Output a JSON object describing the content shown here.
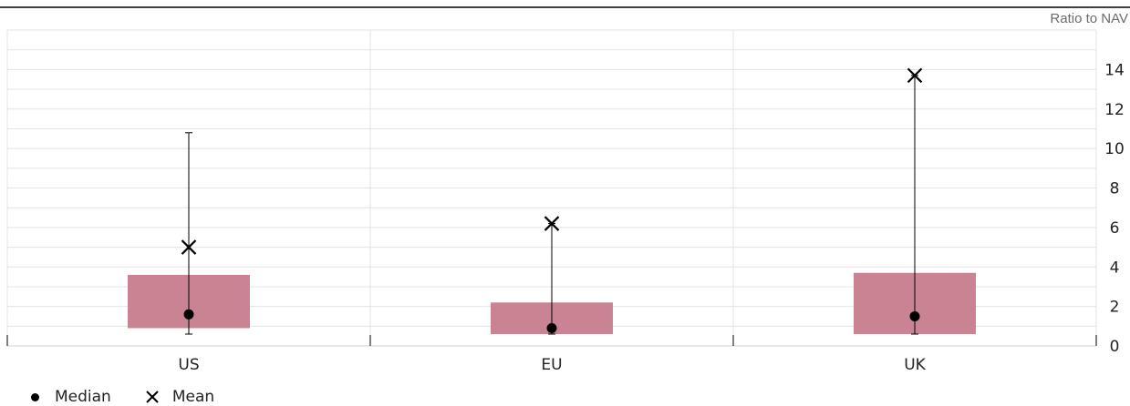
{
  "chart_data": {
    "type": "box",
    "unit_label": "Ratio to NAV",
    "categories": [
      "US",
      "EU",
      "UK"
    ],
    "boxes": [
      {
        "category": "US",
        "whisker_low": 0.6,
        "q1": 0.9,
        "median": 1.6,
        "q3": 3.6,
        "whisker_high": 10.8,
        "mean": 5.0
      },
      {
        "category": "EU",
        "whisker_low": 0.6,
        "q1": 0.6,
        "median": 0.9,
        "q3": 2.2,
        "whisker_high": 6.2,
        "mean": 6.2
      },
      {
        "category": "UK",
        "whisker_low": 0.6,
        "q1": 0.6,
        "median": 1.5,
        "q3": 3.7,
        "whisker_high": 13.7,
        "mean": 13.7
      }
    ],
    "y_ticks": [
      0,
      2,
      4,
      6,
      8,
      10,
      12,
      14
    ],
    "ylim": [
      0,
      16
    ],
    "y_axis_position": "right",
    "grid": true,
    "box_color": "#c98393",
    "legend_position": "bottom-left",
    "legend": [
      {
        "label": "Median",
        "marker": "dot-icon"
      },
      {
        "label": "Mean",
        "marker": "x-icon"
      }
    ]
  }
}
